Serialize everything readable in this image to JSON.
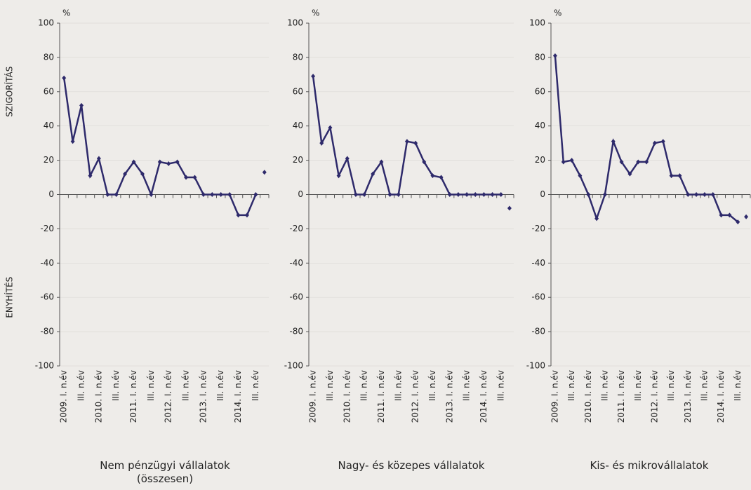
{
  "chart_data": [
    {
      "type": "line",
      "title": "Nem pénzügyi vállalatok (összesen)",
      "unit": "%",
      "annotations": [
        "SZIGORÍTÁS",
        "ENYHÍTÉS"
      ],
      "categories": [
        "2009. I. n.év",
        null,
        "III. n.év",
        null,
        "2010. I. n.év",
        null,
        "III. n.év",
        null,
        "2011. I. n.év",
        null,
        "III. n.év",
        null,
        "2012. I. n.év",
        null,
        "III. n.év",
        null,
        "2013. I. n.év",
        null,
        "III. n.év",
        null,
        "2014. I. n.év",
        null,
        "III. n.év",
        null
      ],
      "series": [
        {
          "color": "#2e2a6b",
          "values": [
            68,
            31,
            52,
            11,
            21,
            0,
            0,
            12,
            19,
            12,
            0,
            19,
            18,
            19,
            10,
            10,
            0,
            0,
            0,
            0,
            -12,
            -12,
            0,
            null
          ]
        },
        {
          "color": "#2e2a6b",
          "values": [
            null,
            null,
            null,
            null,
            null,
            null,
            null,
            null,
            null,
            null,
            null,
            null,
            null,
            null,
            null,
            null,
            null,
            null,
            null,
            null,
            null,
            null,
            null,
            13
          ]
        }
      ],
      "ylim": [
        -100,
        100
      ],
      "yticks": [
        -100,
        -80,
        -60,
        -40,
        -20,
        0,
        20,
        40,
        60,
        80,
        100
      ],
      "grid": true
    },
    {
      "type": "line",
      "title": "Nagy- és közepes vállalatok",
      "unit": "%",
      "categories": [
        "2009. I. n.év",
        null,
        "III. n.év",
        null,
        "2010. I. n.év",
        null,
        "III. n.év",
        null,
        "2011. I. n.év",
        null,
        "III. n.év",
        null,
        "2012. I. n.év",
        null,
        "III. n.év",
        null,
        "2013. I. n.év",
        null,
        "III. n.év",
        null,
        "2014. I. n.év",
        null,
        "III. n.év",
        null
      ],
      "series": [
        {
          "color": "#2e2a6b",
          "values": [
            69,
            30,
            39,
            11,
            21,
            0,
            0,
            12,
            19,
            0,
            0,
            31,
            30,
            19,
            11,
            10,
            0,
            0,
            0,
            0,
            0,
            0,
            0,
            null
          ]
        },
        {
          "color": "#2e2a6b",
          "values": [
            null,
            null,
            null,
            null,
            null,
            null,
            null,
            null,
            null,
            null,
            null,
            null,
            null,
            null,
            null,
            null,
            null,
            null,
            null,
            null,
            null,
            null,
            null,
            -8
          ]
        }
      ],
      "ylim": [
        -100,
        100
      ],
      "yticks": [
        -100,
        -80,
        -60,
        -40,
        -20,
        0,
        20,
        40,
        60,
        80,
        100
      ],
      "grid": true
    },
    {
      "type": "line",
      "title": "Kis- és mikrovállalatok",
      "unit": "%",
      "categories": [
        "2009. I. n.év",
        null,
        "III. n.év",
        null,
        "2010. I. n.év",
        null,
        "III. n.év",
        null,
        "2011. I. n.év",
        null,
        "III. n.év",
        null,
        "2012. I. n.év",
        null,
        "III. n.év",
        null,
        "2013. I. n.év",
        null,
        "III. n.év",
        null,
        "2014. I. n.év",
        null,
        "III. n.év",
        null
      ],
      "series": [
        {
          "color": "#2e2a6b",
          "values": [
            81,
            19,
            20,
            11,
            0,
            -14,
            0,
            31,
            19,
            12,
            19,
            19,
            30,
            31,
            11,
            11,
            0,
            0,
            0,
            0,
            -12,
            -12,
            -16,
            null
          ]
        },
        {
          "color": "#2e2a6b",
          "values": [
            null,
            null,
            null,
            null,
            null,
            null,
            null,
            null,
            null,
            null,
            null,
            null,
            null,
            null,
            null,
            null,
            null,
            null,
            null,
            null,
            null,
            null,
            null,
            -13
          ]
        }
      ],
      "ylim": [
        -100,
        100
      ],
      "yticks": [
        -100,
        -80,
        -60,
        -40,
        -20,
        0,
        20,
        40,
        60,
        80,
        100
      ],
      "grid": true
    }
  ]
}
